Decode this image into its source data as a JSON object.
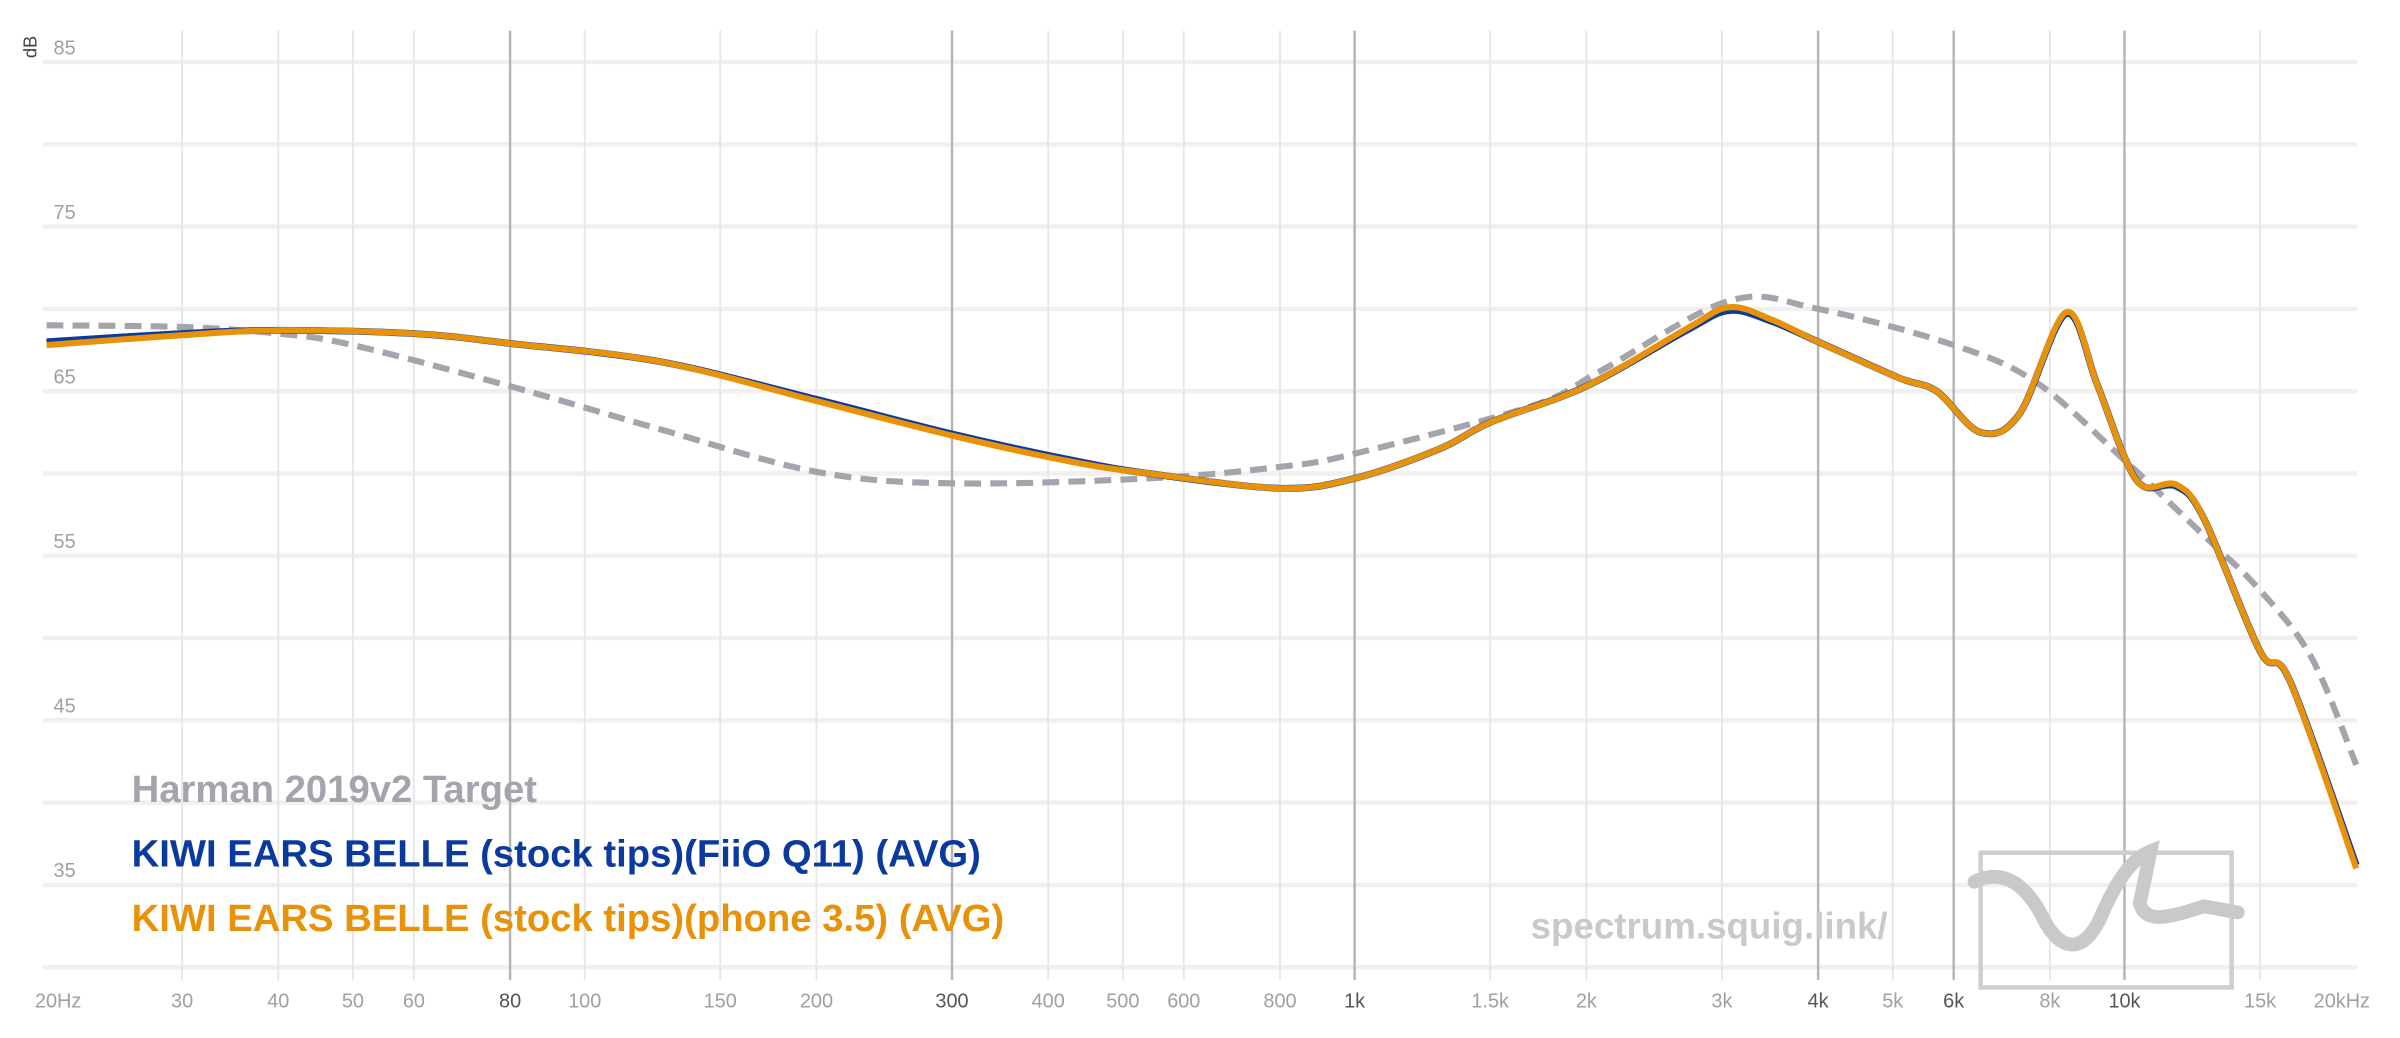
{
  "chart_data": {
    "type": "line",
    "title": "",
    "xlabel": "",
    "ylabel": "dB",
    "xscale": "log",
    "xlim": [
      20,
      20000
    ],
    "ylim": [
      30,
      85
    ],
    "grid": true,
    "legend_position": "bottom-left",
    "y_tick_labels": [
      {
        "value": 85,
        "label": "85"
      },
      {
        "value": 75,
        "label": "75"
      },
      {
        "value": 65,
        "label": "65"
      },
      {
        "value": 55,
        "label": "55"
      },
      {
        "value": 45,
        "label": "45"
      },
      {
        "value": 35,
        "label": "35"
      }
    ],
    "y_grid_step": 5,
    "x_ticks": [
      {
        "value": 20,
        "label": "20Hz",
        "major": false
      },
      {
        "value": 30,
        "label": "30",
        "major": false
      },
      {
        "value": 40,
        "label": "40",
        "major": false
      },
      {
        "value": 50,
        "label": "50",
        "major": false
      },
      {
        "value": 60,
        "label": "60",
        "major": false
      },
      {
        "value": 80,
        "label": "80",
        "major": true
      },
      {
        "value": 100,
        "label": "100",
        "major": false
      },
      {
        "value": 150,
        "label": "150",
        "major": false
      },
      {
        "value": 200,
        "label": "200",
        "major": false
      },
      {
        "value": 300,
        "label": "300",
        "major": true
      },
      {
        "value": 400,
        "label": "400",
        "major": false
      },
      {
        "value": 500,
        "label": "500",
        "major": false
      },
      {
        "value": 600,
        "label": "600",
        "major": false
      },
      {
        "value": 800,
        "label": "800",
        "major": false
      },
      {
        "value": 1000,
        "label": "1k",
        "major": true
      },
      {
        "value": 1500,
        "label": "1.5k",
        "major": false
      },
      {
        "value": 2000,
        "label": "2k",
        "major": false
      },
      {
        "value": 3000,
        "label": "3k",
        "major": false
      },
      {
        "value": 4000,
        "label": "4k",
        "major": true
      },
      {
        "value": 5000,
        "label": "5k",
        "major": false
      },
      {
        "value": 6000,
        "label": "6k",
        "major": true
      },
      {
        "value": 8000,
        "label": "8k",
        "major": false
      },
      {
        "value": 10000,
        "label": "10k",
        "major": true
      },
      {
        "value": 15000,
        "label": "15k",
        "major": false
      },
      {
        "value": 20000,
        "label": "20kHz",
        "major": false
      }
    ],
    "series": [
      {
        "name": "Harman 2019v2 Target",
        "color": "#a5a3ab",
        "dashed": true,
        "points": [
          [
            20,
            69.0
          ],
          [
            30,
            68.9
          ],
          [
            40,
            68.5
          ],
          [
            50,
            67.8
          ],
          [
            80,
            65.3
          ],
          [
            125,
            62.7
          ],
          [
            200,
            60.1
          ],
          [
            300,
            59.4
          ],
          [
            540,
            59.7
          ],
          [
            800,
            60.4
          ],
          [
            1000,
            61.2
          ],
          [
            1700,
            64.1
          ],
          [
            2100,
            66.3
          ],
          [
            3070,
            70.5
          ],
          [
            4000,
            70.0
          ],
          [
            6000,
            67.8
          ],
          [
            7700,
            65.5
          ],
          [
            10000,
            60.8
          ],
          [
            12700,
            56.2
          ],
          [
            15000,
            52.9
          ],
          [
            17500,
            48.8
          ],
          [
            20000,
            42.3
          ]
        ]
      },
      {
        "name": "KIWI EARS BELLE (stock tips)(FiiO Q11) (AVG)",
        "color": "#0a3a9e",
        "dashed": false,
        "points": [
          [
            20,
            68.0
          ],
          [
            30,
            68.5
          ],
          [
            40,
            68.7
          ],
          [
            60,
            68.5
          ],
          [
            80,
            67.9
          ],
          [
            125,
            66.8
          ],
          [
            200,
            64.5
          ],
          [
            300,
            62.4
          ],
          [
            430,
            60.8
          ],
          [
            540,
            60.0
          ],
          [
            800,
            59.1
          ],
          [
            1000,
            59.7
          ],
          [
            1290,
            61.5
          ],
          [
            1500,
            63.1
          ],
          [
            2000,
            65.3
          ],
          [
            2700,
            68.7
          ],
          [
            3070,
            69.9
          ],
          [
            3500,
            69.2
          ],
          [
            4000,
            68.0
          ],
          [
            5100,
            65.8
          ],
          [
            5700,
            65.0
          ],
          [
            6500,
            62.5
          ],
          [
            7300,
            63.6
          ],
          [
            8400,
            69.7
          ],
          [
            9200,
            65.5
          ],
          [
            10000,
            61.0
          ],
          [
            10600,
            59.2
          ],
          [
            11700,
            59.2
          ],
          [
            12700,
            57.2
          ],
          [
            15000,
            49.2
          ],
          [
            16400,
            47.4
          ],
          [
            20000,
            36.2
          ]
        ]
      },
      {
        "name": "KIWI EARS BELLE (stock tips)(phone 3.5) (AVG)",
        "color": "#e8920a",
        "dashed": false,
        "points": [
          [
            20,
            67.8
          ],
          [
            30,
            68.4
          ],
          [
            40,
            68.7
          ],
          [
            60,
            68.5
          ],
          [
            80,
            67.9
          ],
          [
            125,
            66.8
          ],
          [
            200,
            64.4
          ],
          [
            300,
            62.3
          ],
          [
            430,
            60.7
          ],
          [
            540,
            60.0
          ],
          [
            800,
            59.1
          ],
          [
            1000,
            59.7
          ],
          [
            1290,
            61.5
          ],
          [
            1500,
            63.1
          ],
          [
            2000,
            65.3
          ],
          [
            2700,
            68.8
          ],
          [
            3070,
            70.1
          ],
          [
            3500,
            69.3
          ],
          [
            4000,
            68.0
          ],
          [
            5100,
            65.8
          ],
          [
            5700,
            65.0
          ],
          [
            6500,
            62.5
          ],
          [
            7300,
            63.6
          ],
          [
            8400,
            69.8
          ],
          [
            9200,
            65.5
          ],
          [
            10000,
            61.0
          ],
          [
            10600,
            59.2
          ],
          [
            11700,
            59.3
          ],
          [
            12700,
            57.2
          ],
          [
            15000,
            49.2
          ],
          [
            16400,
            47.4
          ],
          [
            20000,
            36.0
          ]
        ]
      }
    ],
    "watermark": "spectrum.squig.link/"
  }
}
